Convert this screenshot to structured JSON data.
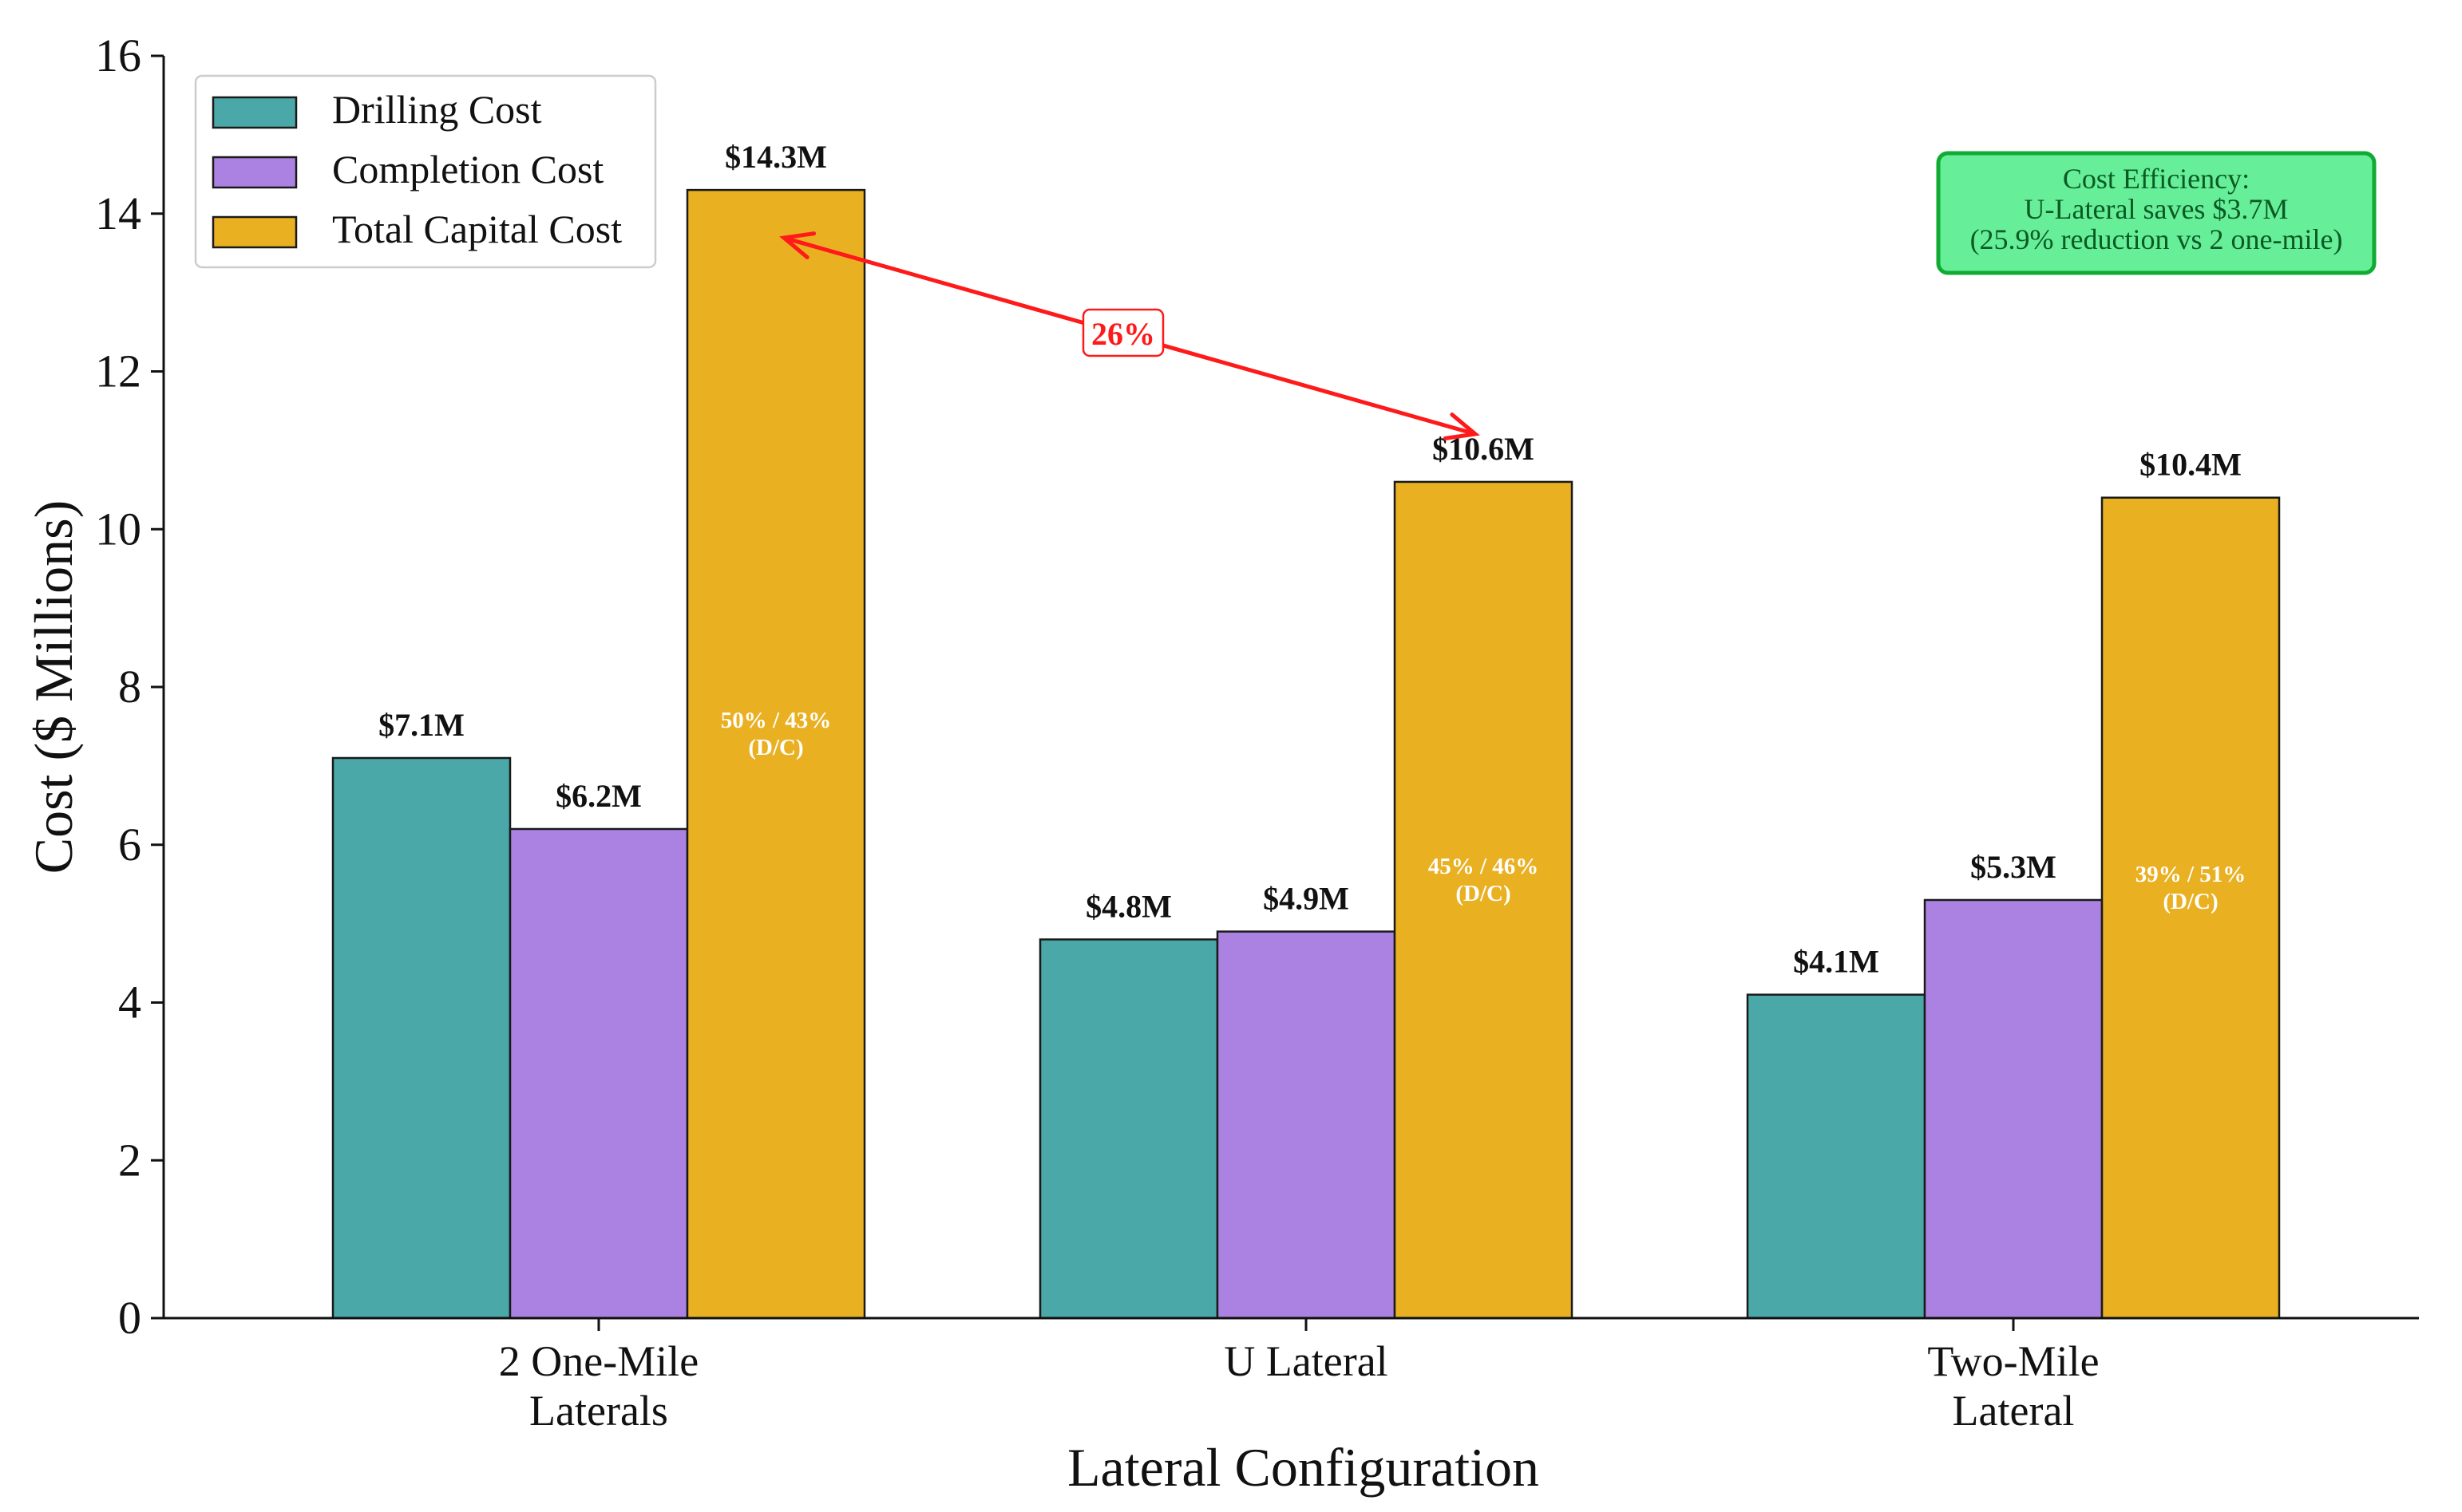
{
  "chart_data": {
    "type": "bar",
    "title": "",
    "xlabel": "Lateral Configuration",
    "ylabel": "Cost ($ Millions)",
    "ylim": [
      0,
      16
    ],
    "yticks": [
      "0",
      "2",
      "4",
      "6",
      "8",
      "10",
      "12",
      "14",
      "16"
    ],
    "grid": false,
    "legend_position": "top-left",
    "categories": [
      [
        "2 One-Mile",
        "Laterals"
      ],
      [
        "U Lateral"
      ],
      [
        "Two-Mile",
        "Lateral"
      ]
    ],
    "series": [
      {
        "name": "Drilling Cost",
        "color": "#4aa8a8",
        "values": [
          7.1,
          4.8,
          4.1
        ],
        "labels": [
          "$7.1M",
          "$4.8M",
          "$4.1M"
        ]
      },
      {
        "name": "Completion Cost",
        "color": "#ab82e2",
        "values": [
          6.2,
          4.9,
          5.3
        ],
        "labels": [
          "$6.2M",
          "$4.9M",
          "$5.3M"
        ]
      },
      {
        "name": "Total Capital Cost",
        "color": "#e9b022",
        "values": [
          14.3,
          10.6,
          10.4
        ],
        "labels": [
          "$14.3M",
          "$10.6M",
          "$10.4M"
        ]
      }
    ],
    "ratio_labels": [
      [
        "50% / 43%",
        "(D/C)"
      ],
      [
        "45% / 46%",
        "(D/C)"
      ],
      [
        "39% / 51%",
        "(D/C)"
      ]
    ],
    "comparison_arrow": {
      "from_category": 0,
      "to_category": 1,
      "label": "26%",
      "color": "#ff1a1a"
    },
    "annotation_box": {
      "lines": [
        "Cost Efficiency:",
        "U-Lateral saves $3.7M",
        "(25.9% reduction vs 2 one-mile)"
      ],
      "background": "#66ee99",
      "border": "#11aa33",
      "position": "top-right"
    }
  }
}
